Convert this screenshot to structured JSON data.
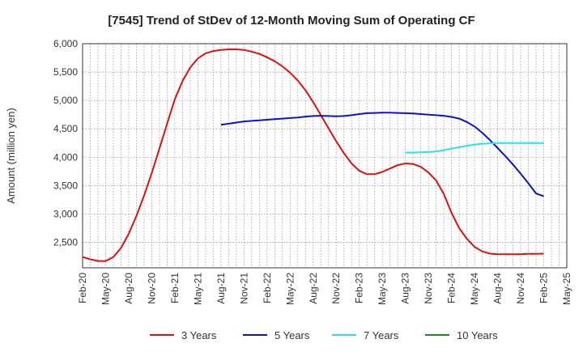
{
  "chart_data": {
    "type": "line",
    "title": "[7545]  Trend of StDev of 12-Month Moving Sum of Operating CF",
    "xlabel": "",
    "ylabel": "Amount (million yen)",
    "x_ticks": [
      "Feb-20",
      "May-20",
      "Aug-20",
      "Nov-20",
      "Feb-21",
      "May-21",
      "Aug-21",
      "Nov-21",
      "Feb-22",
      "May-22",
      "Aug-22",
      "Nov-22",
      "Feb-23",
      "May-23",
      "Aug-23",
      "Nov-23",
      "Feb-24",
      "May-24",
      "Aug-24",
      "Nov-24",
      "Feb-25",
      "May-25"
    ],
    "y_ticks": [
      2500,
      3000,
      3500,
      4000,
      4500,
      5000,
      5500,
      6000
    ],
    "ylim": [
      2050,
      6000
    ],
    "grid": true,
    "legend_position": "bottom",
    "series": [
      {
        "name": "3 Years",
        "color": "#dd1111",
        "points": [
          [
            "2020-02",
            2240
          ],
          [
            "2020-03",
            2200
          ],
          [
            "2020-04",
            2170
          ],
          [
            "2020-05",
            2170
          ],
          [
            "2020-06",
            2240
          ],
          [
            "2020-07",
            2400
          ],
          [
            "2020-08",
            2650
          ],
          [
            "2020-09",
            2960
          ],
          [
            "2020-10",
            3320
          ],
          [
            "2020-11",
            3720
          ],
          [
            "2020-12",
            4150
          ],
          [
            "2021-01",
            4590
          ],
          [
            "2021-02",
            5020
          ],
          [
            "2021-03",
            5340
          ],
          [
            "2021-04",
            5580
          ],
          [
            "2021-05",
            5740
          ],
          [
            "2021-06",
            5830
          ],
          [
            "2021-07",
            5870
          ],
          [
            "2021-08",
            5890
          ],
          [
            "2021-09",
            5900
          ],
          [
            "2021-10",
            5900
          ],
          [
            "2021-11",
            5890
          ],
          [
            "2021-12",
            5860
          ],
          [
            "2022-01",
            5820
          ],
          [
            "2022-02",
            5760
          ],
          [
            "2022-03",
            5690
          ],
          [
            "2022-04",
            5600
          ],
          [
            "2022-05",
            5490
          ],
          [
            "2022-06",
            5350
          ],
          [
            "2022-07",
            5180
          ],
          [
            "2022-08",
            4970
          ],
          [
            "2022-09",
            4740
          ],
          [
            "2022-10",
            4510
          ],
          [
            "2022-11",
            4280
          ],
          [
            "2022-12",
            4070
          ],
          [
            "2023-01",
            3890
          ],
          [
            "2023-02",
            3760
          ],
          [
            "2023-03",
            3700
          ],
          [
            "2023-04",
            3700
          ],
          [
            "2023-05",
            3740
          ],
          [
            "2023-06",
            3800
          ],
          [
            "2023-07",
            3860
          ],
          [
            "2023-08",
            3890
          ],
          [
            "2023-09",
            3880
          ],
          [
            "2023-10",
            3830
          ],
          [
            "2023-11",
            3730
          ],
          [
            "2023-12",
            3590
          ],
          [
            "2024-01",
            3350
          ],
          [
            "2024-02",
            3020
          ],
          [
            "2024-03",
            2750
          ],
          [
            "2024-04",
            2560
          ],
          [
            "2024-05",
            2420
          ],
          [
            "2024-06",
            2340
          ],
          [
            "2024-07",
            2300
          ],
          [
            "2024-08",
            2290
          ],
          [
            "2024-09",
            2290
          ],
          [
            "2024-10",
            2290
          ],
          [
            "2024-11",
            2290
          ],
          [
            "2024-12",
            2295
          ],
          [
            "2025-01",
            2295
          ],
          [
            "2025-02",
            2300
          ]
        ]
      },
      {
        "name": "5 Years",
        "color": "#0a14c8",
        "points": [
          [
            "2021-08",
            4570
          ],
          [
            "2021-09",
            4590
          ],
          [
            "2021-10",
            4610
          ],
          [
            "2021-11",
            4630
          ],
          [
            "2021-12",
            4640
          ],
          [
            "2022-01",
            4650
          ],
          [
            "2022-02",
            4660
          ],
          [
            "2022-03",
            4670
          ],
          [
            "2022-04",
            4680
          ],
          [
            "2022-05",
            4690
          ],
          [
            "2022-06",
            4700
          ],
          [
            "2022-07",
            4715
          ],
          [
            "2022-08",
            4725
          ],
          [
            "2022-09",
            4730
          ],
          [
            "2022-10",
            4725
          ],
          [
            "2022-11",
            4720
          ],
          [
            "2022-12",
            4725
          ],
          [
            "2023-01",
            4740
          ],
          [
            "2023-02",
            4760
          ],
          [
            "2023-03",
            4775
          ],
          [
            "2023-04",
            4780
          ],
          [
            "2023-05",
            4785
          ],
          [
            "2023-06",
            4785
          ],
          [
            "2023-07",
            4780
          ],
          [
            "2023-08",
            4775
          ],
          [
            "2023-09",
            4770
          ],
          [
            "2023-10",
            4760
          ],
          [
            "2023-11",
            4750
          ],
          [
            "2023-12",
            4740
          ],
          [
            "2024-01",
            4730
          ],
          [
            "2024-02",
            4710
          ],
          [
            "2024-03",
            4680
          ],
          [
            "2024-04",
            4620
          ],
          [
            "2024-05",
            4540
          ],
          [
            "2024-06",
            4430
          ],
          [
            "2024-07",
            4300
          ],
          [
            "2024-08",
            4160
          ],
          [
            "2024-09",
            4020
          ],
          [
            "2024-10",
            3870
          ],
          [
            "2024-11",
            3710
          ],
          [
            "2024-12",
            3540
          ],
          [
            "2025-01",
            3360
          ],
          [
            "2025-02",
            3310
          ]
        ]
      },
      {
        "name": "7 Years",
        "color": "#22e4ee",
        "points": [
          [
            "2023-08",
            4080
          ],
          [
            "2023-09",
            4080
          ],
          [
            "2023-10",
            4085
          ],
          [
            "2023-11",
            4090
          ],
          [
            "2023-12",
            4100
          ],
          [
            "2024-01",
            4120
          ],
          [
            "2024-02",
            4150
          ],
          [
            "2024-03",
            4175
          ],
          [
            "2024-04",
            4200
          ],
          [
            "2024-05",
            4220
          ],
          [
            "2024-06",
            4235
          ],
          [
            "2024-07",
            4245
          ],
          [
            "2024-08",
            4250
          ],
          [
            "2024-09",
            4250
          ],
          [
            "2024-10",
            4250
          ],
          [
            "2024-11",
            4250
          ],
          [
            "2024-12",
            4250
          ],
          [
            "2025-01",
            4250
          ],
          [
            "2025-02",
            4250
          ]
        ]
      },
      {
        "name": "10 Years",
        "color": "#1e8a1e",
        "points": []
      }
    ]
  }
}
